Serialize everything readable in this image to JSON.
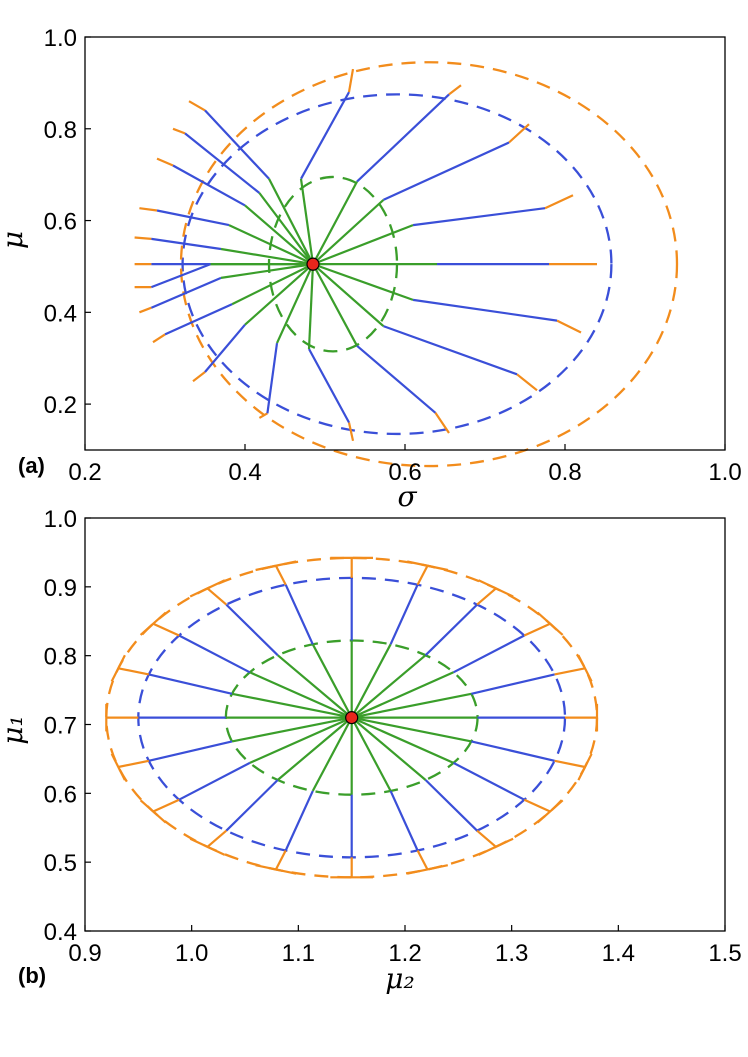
{
  "colors": {
    "green": "#3a9e2a",
    "blue": "#3a4fd8",
    "orange": "#f28c1c",
    "center_fill": "#e8261c"
  },
  "chart_data": [
    {
      "type": "line",
      "panel": "(a)",
      "xlabel": "σ",
      "ylabel": "μ",
      "xlim": [
        0.2,
        1.0
      ],
      "ylim": [
        0.1,
        1.0
      ],
      "xticks": [
        "0.2",
        "0.4",
        "0.6",
        "0.8",
        "1.0"
      ],
      "xtick_values": [
        0.2,
        0.4,
        0.6,
        0.8,
        1.0
      ],
      "yticks": [
        "0.2",
        "0.4",
        "0.6",
        "0.8",
        "1.0"
      ],
      "ytick_values": [
        0.2,
        0.4,
        0.6,
        0.8,
        1.0
      ],
      "grid": false,
      "center": [
        0.485,
        0.505
      ],
      "geodesics": [
        {
          "green": [
            [
              0.485,
              0.505
            ],
            [
              0.43,
              0.691
            ]
          ],
          "blue": [
            [
              0.43,
              0.691
            ],
            [
              0.35,
              0.84
            ]
          ],
          "orange": [
            [
              0.35,
              0.84
            ],
            [
              0.33,
              0.86
            ]
          ]
        },
        {
          "green": [
            [
              0.485,
              0.505
            ],
            [
              0.47,
              0.691
            ]
          ],
          "blue": [
            [
              0.47,
              0.691
            ],
            [
              0.53,
              0.88
            ]
          ],
          "orange": [
            [
              0.53,
              0.88
            ],
            [
              0.535,
              0.93
            ]
          ]
        },
        {
          "green": [
            [
              0.485,
              0.505
            ],
            [
              0.54,
              0.685
            ]
          ],
          "blue": [
            [
              0.54,
              0.685
            ],
            [
              0.655,
              0.875
            ]
          ],
          "orange": [
            [
              0.655,
              0.875
            ],
            [
              0.67,
              0.895
            ]
          ]
        },
        {
          "green": [
            [
              0.485,
              0.505
            ],
            [
              0.573,
              0.645
            ]
          ],
          "blue": [
            [
              0.573,
              0.645
            ],
            [
              0.73,
              0.77
            ]
          ],
          "orange": [
            [
              0.73,
              0.77
            ],
            [
              0.755,
              0.81
            ]
          ]
        },
        {
          "green": [
            [
              0.485,
              0.505
            ],
            [
              0.61,
              0.59
            ]
          ],
          "blue": [
            [
              0.61,
              0.59
            ],
            [
              0.775,
              0.627
            ]
          ],
          "orange": [
            [
              0.775,
              0.627
            ],
            [
              0.81,
              0.655
            ]
          ]
        },
        {
          "green": [
            [
              0.485,
              0.505
            ],
            [
              0.64,
              0.505
            ]
          ],
          "blue": [
            [
              0.64,
              0.505
            ],
            [
              0.78,
              0.505
            ]
          ],
          "orange": [
            [
              0.78,
              0.505
            ],
            [
              0.84,
              0.505
            ]
          ]
        },
        {
          "green": [
            [
              0.485,
              0.505
            ],
            [
              0.61,
              0.427
            ]
          ],
          "blue": [
            [
              0.61,
              0.427
            ],
            [
              0.79,
              0.382
            ]
          ],
          "orange": [
            [
              0.79,
              0.382
            ],
            [
              0.82,
              0.356
            ]
          ]
        },
        {
          "green": [
            [
              0.485,
              0.505
            ],
            [
              0.573,
              0.37
            ]
          ],
          "blue": [
            [
              0.573,
              0.37
            ],
            [
              0.74,
              0.265
            ]
          ],
          "orange": [
            [
              0.74,
              0.265
            ],
            [
              0.765,
              0.23
            ]
          ]
        },
        {
          "green": [
            [
              0.485,
              0.505
            ],
            [
              0.54,
              0.327
            ]
          ],
          "blue": [
            [
              0.54,
              0.327
            ],
            [
              0.638,
              0.181
            ]
          ],
          "orange": [
            [
              0.638,
              0.181
            ],
            [
              0.655,
              0.137
            ]
          ]
        },
        {
          "green": [
            [
              0.485,
              0.505
            ],
            [
              0.48,
              0.32
            ]
          ],
          "blue": [
            [
              0.48,
              0.32
            ],
            [
              0.53,
              0.16
            ]
          ],
          "orange": [
            [
              0.53,
              0.16
            ],
            [
              0.535,
              0.12
            ]
          ]
        },
        {
          "green": [
            [
              0.485,
              0.505
            ],
            [
              0.44,
              0.333
            ]
          ],
          "blue": [
            [
              0.44,
              0.333
            ],
            [
              0.428,
              0.18
            ]
          ],
          "orange": [
            [
              0.428,
              0.18
            ],
            [
              0.418,
              0.17
            ]
          ]
        },
        {
          "green": [
            [
              0.485,
              0.505
            ],
            [
              0.4,
              0.373
            ]
          ],
          "blue": [
            [
              0.4,
              0.373
            ],
            [
              0.35,
              0.27
            ]
          ],
          "orange": [
            [
              0.35,
              0.27
            ],
            [
              0.335,
              0.25
            ]
          ]
        },
        {
          "green": [
            [
              0.485,
              0.505
            ],
            [
              0.384,
              0.418
            ]
          ],
          "blue": [
            [
              0.384,
              0.418
            ],
            [
              0.3,
              0.352
            ]
          ],
          "orange": [
            [
              0.3,
              0.352
            ],
            [
              0.285,
              0.335
            ]
          ]
        },
        {
          "green": [
            [
              0.485,
              0.505
            ],
            [
              0.37,
              0.475
            ]
          ],
          "blue": [
            [
              0.37,
              0.475
            ],
            [
              0.283,
              0.41
            ]
          ],
          "orange": [
            [
              0.283,
              0.41
            ],
            [
              0.268,
              0.4
            ]
          ]
        },
        {
          "green": [
            [
              0.485,
              0.505
            ],
            [
              0.357,
              0.505
            ]
          ],
          "blue": [
            [
              0.357,
              0.505
            ],
            [
              0.283,
              0.455
            ]
          ],
          "orange": [
            [
              0.283,
              0.455
            ],
            [
              0.262,
              0.455
            ]
          ]
        },
        {
          "green": [
            [
              0.485,
              0.505
            ],
            [
              0.357,
              0.505
            ]
          ],
          "blue": [
            [
              0.357,
              0.505
            ],
            [
              0.283,
              0.505
            ]
          ],
          "orange": [
            [
              0.283,
              0.505
            ],
            [
              0.262,
              0.505
            ]
          ]
        },
        {
          "green": [
            [
              0.485,
              0.505
            ],
            [
              0.37,
              0.538
            ]
          ],
          "blue": [
            [
              0.37,
              0.538
            ],
            [
              0.283,
              0.56
            ]
          ],
          "orange": [
            [
              0.283,
              0.56
            ],
            [
              0.262,
              0.563
            ]
          ]
        },
        {
          "green": [
            [
              0.485,
              0.505
            ],
            [
              0.38,
              0.59
            ]
          ],
          "blue": [
            [
              0.38,
              0.59
            ],
            [
              0.29,
              0.622
            ]
          ],
          "orange": [
            [
              0.29,
              0.622
            ],
            [
              0.268,
              0.627
            ]
          ]
        },
        {
          "green": [
            [
              0.485,
              0.505
            ],
            [
              0.4,
              0.633
            ]
          ],
          "blue": [
            [
              0.4,
              0.633
            ],
            [
              0.31,
              0.72
            ]
          ],
          "orange": [
            [
              0.31,
              0.72
            ],
            [
              0.29,
              0.735
            ]
          ]
        },
        {
          "green": [
            [
              0.485,
              0.505
            ],
            [
              0.418,
              0.66
            ]
          ],
          "blue": [
            [
              0.418,
              0.66
            ],
            [
              0.325,
              0.79
            ]
          ],
          "orange": [
            [
              0.325,
              0.79
            ],
            [
              0.31,
              0.8
            ]
          ]
        }
      ],
      "contours": [
        {
          "color": "green",
          "center": [
            0.51,
            0.505
          ],
          "radii": [
            0.08,
            0.19
          ]
        },
        {
          "color": "blue",
          "center": [
            0.59,
            0.505
          ],
          "radii": [
            0.268,
            0.37
          ]
        },
        {
          "color": "orange",
          "center": [
            0.63,
            0.505
          ],
          "radii": [
            0.31,
            0.44
          ]
        }
      ]
    },
    {
      "type": "line",
      "panel": "(b)",
      "xlabel": "μ₂",
      "ylabel": "μ₁",
      "xlim": [
        0.9,
        1.5
      ],
      "ylim": [
        0.4,
        1.0
      ],
      "xticks": [
        "0.9",
        "1.0",
        "1.1",
        "1.2",
        "1.3",
        "1.4",
        "1.5"
      ],
      "xtick_values": [
        0.9,
        1.0,
        1.1,
        1.2,
        1.3,
        1.4,
        1.5
      ],
      "yticks": [
        "0.4",
        "0.5",
        "0.6",
        "0.7",
        "0.8",
        "0.9",
        "1.0"
      ],
      "ytick_values": [
        0.4,
        0.5,
        0.6,
        0.7,
        0.8,
        0.9,
        1.0
      ],
      "grid": false,
      "center": [
        1.15,
        0.71
      ],
      "rays": 20,
      "contours": [
        {
          "color": "green",
          "center": [
            1.15,
            0.71
          ],
          "radii": [
            0.118,
            0.112
          ]
        },
        {
          "color": "blue",
          "center": [
            1.15,
            0.71
          ],
          "radii": [
            0.2,
            0.203
          ]
        },
        {
          "color": "orange",
          "center": [
            1.15,
            0.71
          ],
          "radii": [
            0.23,
            0.232
          ]
        }
      ]
    }
  ]
}
